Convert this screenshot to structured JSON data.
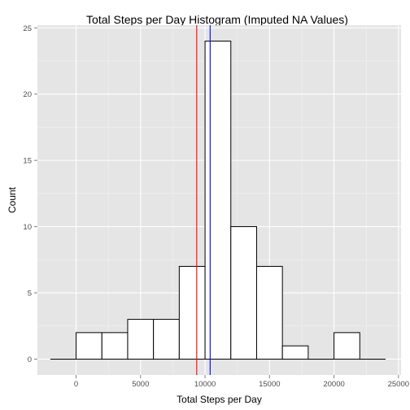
{
  "chart_data": {
    "type": "bar",
    "title": "Total Steps per Day Histogram (Imputed NA Values)",
    "xlabel": "Total Steps per Day",
    "ylabel": "Count",
    "bin_width": 2000,
    "bins": [
      {
        "x0": -2000,
        "x1": 0,
        "count": 0
      },
      {
        "x0": 0,
        "x1": 2000,
        "count": 2
      },
      {
        "x0": 2000,
        "x1": 4000,
        "count": 2
      },
      {
        "x0": 4000,
        "x1": 6000,
        "count": 3
      },
      {
        "x0": 6000,
        "x1": 8000,
        "count": 3
      },
      {
        "x0": 8000,
        "x1": 10000,
        "count": 7
      },
      {
        "x0": 10000,
        "x1": 12000,
        "count": 24
      },
      {
        "x0": 12000,
        "x1": 14000,
        "count": 10
      },
      {
        "x0": 14000,
        "x1": 16000,
        "count": 7
      },
      {
        "x0": 16000,
        "x1": 18000,
        "count": 1
      },
      {
        "x0": 18000,
        "x1": 20000,
        "count": 0
      },
      {
        "x0": 20000,
        "x1": 22000,
        "count": 2
      },
      {
        "x0": 22000,
        "x1": 24000,
        "count": 0
      }
    ],
    "xlim": [
      -3000,
      25200
    ],
    "ylim": [
      -1.2,
      25.2
    ],
    "x_ticks": [
      0,
      5000,
      10000,
      15000,
      20000,
      25000
    ],
    "x_tick_labels": [
      "0",
      "5000",
      "10000",
      "15000",
      "20000",
      "25000"
    ],
    "y_ticks": [
      0,
      5,
      10,
      15,
      20,
      25
    ],
    "y_tick_labels": [
      "0",
      "5",
      "10",
      "15",
      "20",
      "25"
    ],
    "reference_lines": [
      {
        "x": 9354,
        "color": "#ff0000"
      },
      {
        "x": 10395,
        "color": "#0000ff"
      }
    ],
    "grid": true,
    "colors": {
      "panel_background": "#e5e5e5",
      "grid_major": "#ffffff",
      "grid_minor": "#f2f2f2",
      "bar_fill": "#ffffff",
      "bar_outline": "#000000"
    }
  }
}
